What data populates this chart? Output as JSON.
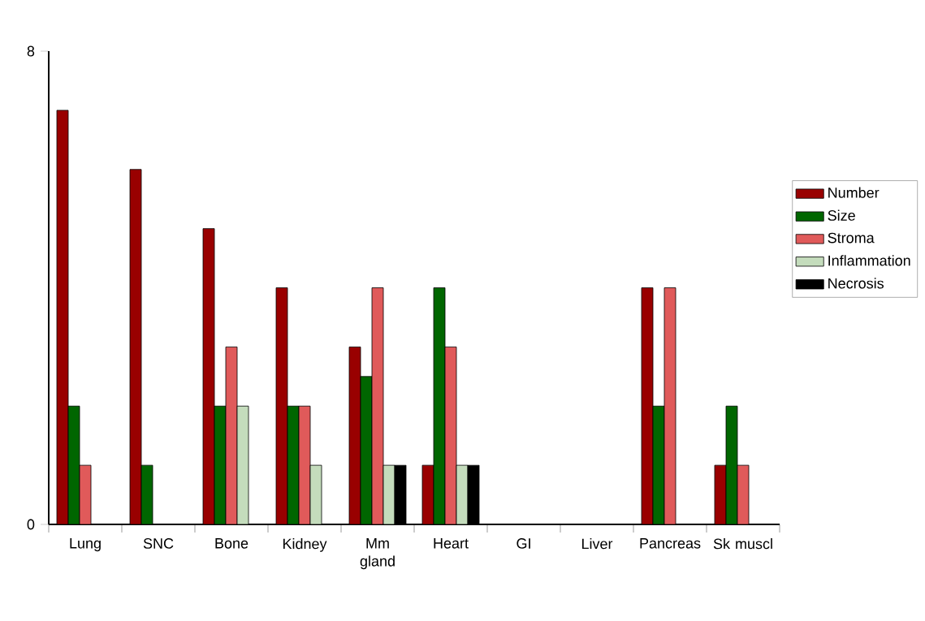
{
  "chart_data": {
    "type": "bar",
    "categories": [
      "Lung",
      "SNC",
      "Bone",
      "Kidney",
      "Mm gland",
      "Heart",
      "GI",
      "Liver",
      "Pancreas",
      "Sk muscl"
    ],
    "series": [
      {
        "name": "Number",
        "color": "#990000",
        "values": [
          7,
          6,
          5,
          4,
          3,
          1,
          null,
          null,
          4,
          1
        ]
      },
      {
        "name": "Size",
        "color": "#006600",
        "values": [
          2,
          1,
          2,
          2,
          2.5,
          4,
          null,
          null,
          2,
          2
        ]
      },
      {
        "name": "Stroma",
        "color": "#e05a5a",
        "values": [
          1,
          null,
          3,
          2,
          4,
          3,
          null,
          null,
          4,
          1
        ]
      },
      {
        "name": "Inflammation",
        "color": "#c4dcbc",
        "values": [
          null,
          null,
          2,
          1,
          1,
          1,
          null,
          null,
          null,
          null
        ]
      },
      {
        "name": "Necrosis",
        "color": "#000000",
        "values": [
          null,
          null,
          null,
          null,
          1,
          1,
          null,
          null,
          null,
          null
        ]
      }
    ],
    "ylim": [
      0,
      8
    ],
    "yticks": [
      0,
      8
    ],
    "legend": "right"
  }
}
